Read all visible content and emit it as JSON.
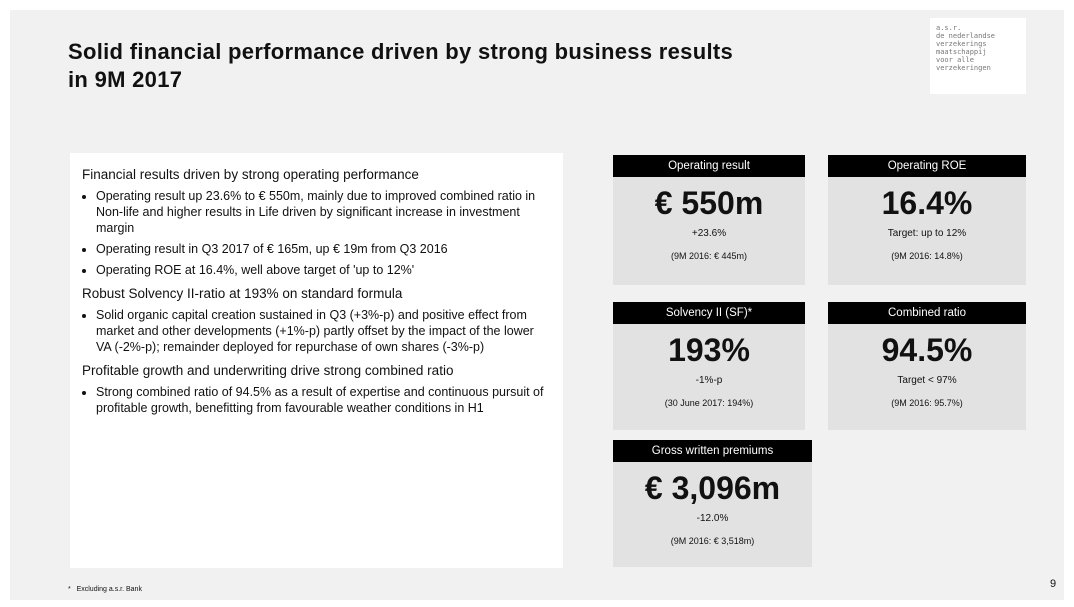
{
  "header": {
    "title_lines": [
      "Solid financial performance driven by strong business results",
      "in 9M 2017"
    ]
  },
  "logo": {
    "lines": [
      "a.s.r.",
      "de nederlandse",
      "verzekerings",
      "maatschappij",
      "voor alle",
      "verzekeringen"
    ]
  },
  "sections": [
    {
      "heading": "Financial results driven by strong operating performance",
      "bullets": [
        "Operating result up 23.6% to € 550m, mainly due to improved combined ratio in Non-life and higher results in Life driven by significant increase in investment margin",
        "Operating result in Q3 2017 of € 165m, up € 19m from Q3 2016",
        "Operating ROE at 16.4%, well above target of 'up to 12%'"
      ]
    },
    {
      "heading": "Robust Solvency II-ratio at 193% on standard formula",
      "bullets": [
        "Solid organic capital creation sustained in Q3 (+3%-p) and positive effect from market and other developments (+1%-p) partly offset by the impact of the lower VA (-2%-p); remainder deployed for repurchase of own shares (-3%-p)"
      ]
    },
    {
      "heading": "Profitable growth and underwriting drive strong combined ratio",
      "bullets": [
        "Strong combined ratio of 94.5% as a result of expertise and continuous pursuit of profitable growth, benefitting from favourable weather conditions in H1"
      ]
    }
  ],
  "kpis": [
    {
      "label": "Operating result",
      "value": "€ 550m",
      "change": "+23.6%",
      "note": "(9M 2016: € 445m)"
    },
    {
      "label": "Operating ROE",
      "value": "16.4%",
      "change": "Target: up to 12%",
      "note": "(9M 2016: 14.8%)"
    },
    {
      "label": "Solvency II (SF)*",
      "value": "193%",
      "change": "-1%-p",
      "note": "(30 June 2017: 194%)"
    },
    {
      "label": "Combined ratio",
      "value": "94.5%",
      "change": "Target < 97%",
      "note": "(9M 2016: 95.7%)"
    },
    {
      "label": "Gross written premiums",
      "value": "€ 3,096m",
      "change": "-12.0%",
      "note": "(9M 2016: € 3,518m)"
    }
  ],
  "footnote": {
    "mark": "*",
    "text": "Excluding a.s.r. Bank"
  },
  "page_number": "9"
}
